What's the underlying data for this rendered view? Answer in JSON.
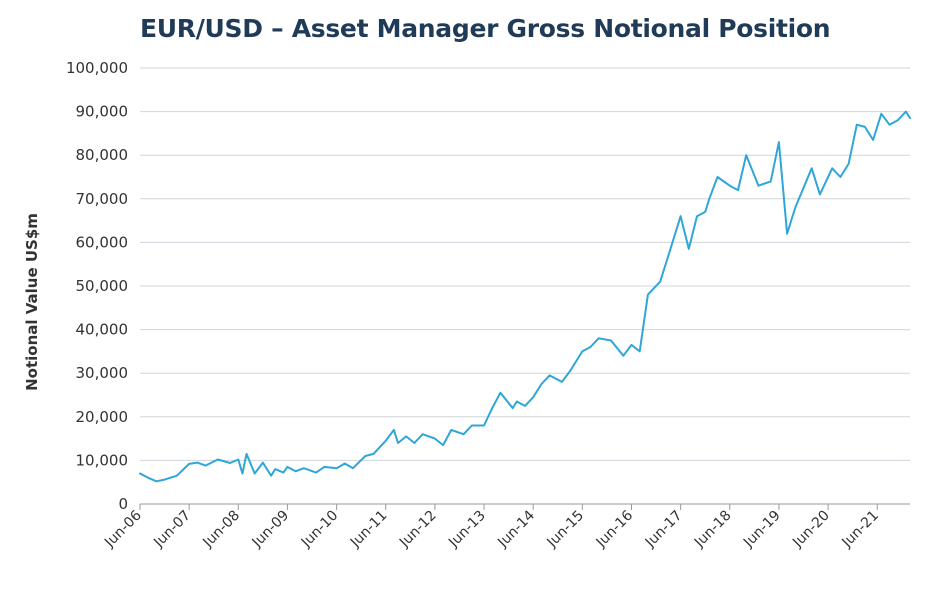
{
  "chart_data": {
    "type": "line",
    "title": "EUR/USD – Asset Manager Gross Notional Position",
    "xlabel": "",
    "ylabel": "Notional Value US$m",
    "ylim": [
      0,
      100000
    ],
    "y_ticks": [
      "0",
      "10,000",
      "20,000",
      "30,000",
      "40,000",
      "50,000",
      "60,000",
      "70,000",
      "80,000",
      "90,000",
      "100,000"
    ],
    "x_ticks": [
      "Jun-06",
      "Jun-07",
      "Jun-08",
      "Jun-09",
      "Jun-10",
      "Jun-11",
      "Jun-12",
      "Jun-13",
      "Jun-14",
      "Jun-15",
      "Jun-16",
      "Jun-17",
      "Jun-18",
      "Jun-19",
      "Jun-20",
      "Jun-21"
    ],
    "x_range": [
      "2006-06",
      "2022-02"
    ],
    "grid": "horizontal",
    "legend": "none",
    "color": "#2fa6d9",
    "series": [
      {
        "x": [
          "2006-06",
          "2006-08",
          "2006-10",
          "2006-12",
          "2007-03",
          "2007-06",
          "2007-08",
          "2007-10",
          "2008-01",
          "2008-04",
          "2008-06",
          "2008-07",
          "2008-08",
          "2008-10",
          "2008-12",
          "2009-02",
          "2009-03",
          "2009-05",
          "2009-06",
          "2009-08",
          "2009-10",
          "2010-01",
          "2010-03",
          "2010-06",
          "2010-08",
          "2010-10",
          "2011-01",
          "2011-03",
          "2011-06",
          "2011-08",
          "2011-09",
          "2011-11",
          "2012-01",
          "2012-03",
          "2012-06",
          "2012-08",
          "2012-10",
          "2013-01",
          "2013-03",
          "2013-06",
          "2013-08",
          "2013-10",
          "2014-01",
          "2014-02",
          "2014-04",
          "2014-06",
          "2014-08",
          "2014-10",
          "2015-01",
          "2015-03",
          "2015-06",
          "2015-08",
          "2015-10",
          "2016-01",
          "2016-04",
          "2016-06",
          "2016-08",
          "2016-10",
          "2017-01",
          "2017-03",
          "2017-06",
          "2017-08",
          "2017-10",
          "2017-12",
          "2018-01",
          "2018-03",
          "2018-06",
          "2018-08",
          "2018-10",
          "2019-01",
          "2019-04",
          "2019-06",
          "2019-08",
          "2019-10",
          "2019-12",
          "2020-02",
          "2020-04",
          "2020-05",
          "2020-07",
          "2020-09",
          "2020-11",
          "2021-01",
          "2021-03",
          "2021-05",
          "2021-07",
          "2021-09",
          "2021-11",
          "2022-01",
          "2022-02"
        ],
        "values": [
          7000,
          6000,
          5200,
          5600,
          6500,
          9200,
          9500,
          8800,
          10200,
          9400,
          10200,
          7000,
          11500,
          7000,
          9500,
          6500,
          8000,
          7200,
          8500,
          7500,
          8200,
          7200,
          8500,
          8200,
          9300,
          8200,
          11000,
          11500,
          14500,
          17000,
          14000,
          15500,
          14000,
          16000,
          15000,
          13500,
          17000,
          16000,
          18000,
          18000,
          22000,
          25500,
          22000,
          23500,
          22500,
          24500,
          27500,
          29500,
          28000,
          30500,
          35000,
          36000,
          38000,
          37500,
          34000,
          36500,
          35000,
          48000,
          51000,
          57000,
          66000,
          58500,
          66000,
          67000,
          70000,
          75000,
          73000,
          72000,
          80000,
          73000,
          74000,
          83000,
          62000,
          68000,
          72500,
          77000,
          71000,
          73000,
          77000,
          75000,
          78000,
          87000,
          86500,
          83500,
          89500,
          87000,
          88000,
          90000,
          88500
        ]
      }
    ]
  }
}
